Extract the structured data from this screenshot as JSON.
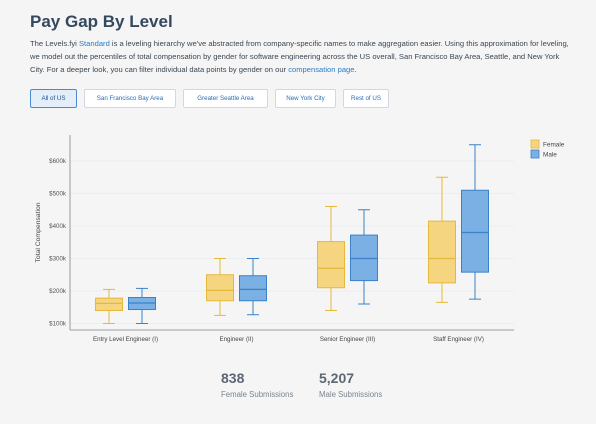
{
  "page": {
    "title": "Pay Gap By Level",
    "intro": {
      "p1": "The Levels.fyi ",
      "link1": "Standard",
      "p2": " is a leveling hierarchy we've abstracted from company-specific names to make aggregation easier. Using this approximation for leveling, we model out the percentiles of total compensation by gender for software engineering across the US overall, San Francisco Bay Area, Seattle, and New York City. For a deeper look, you can filter individual data points by gender on our ",
      "link2": "compensation page",
      "p3": "."
    }
  },
  "filters": {
    "active": 0,
    "items": [
      "All of US",
      "San Francisco Bay Area",
      "Greater Seattle Area",
      "New York City",
      "Rest of US"
    ]
  },
  "colors": {
    "female_fill": "#f5d580",
    "female_stroke": "#e5b93b",
    "male_fill": "#7bb0e4",
    "male_stroke": "#3b82c8",
    "link": "#2a7cc7"
  },
  "chart_data": {
    "type": "box",
    "title": "",
    "xlabel": "",
    "ylabel": "Total Compensation",
    "ylim": [
      80000,
      680000
    ],
    "yticks": [
      100000,
      200000,
      300000,
      400000,
      500000,
      600000
    ],
    "ytick_labels": [
      "$100k",
      "$200k",
      "$300k",
      "$400k",
      "$500k",
      "$600k"
    ],
    "grid": true,
    "legend": "top-right",
    "categories": [
      "Entry Level Engineer (I)",
      "Engineer (II)",
      "Senior Engineer (III)",
      "Staff Engineer (IV)"
    ],
    "series": [
      {
        "name": "Female",
        "boxes": [
          {
            "min": 100000,
            "q1": 140000,
            "median": 162000,
            "q3": 178000,
            "max": 205000
          },
          {
            "min": 125000,
            "q1": 170000,
            "median": 202000,
            "q3": 250000,
            "max": 300000
          },
          {
            "min": 140000,
            "q1": 210000,
            "median": 270000,
            "q3": 352000,
            "max": 460000
          },
          {
            "min": 165000,
            "q1": 225000,
            "median": 300000,
            "q3": 415000,
            "max": 550000
          }
        ]
      },
      {
        "name": "Male",
        "boxes": [
          {
            "min": 100000,
            "q1": 143000,
            "median": 163000,
            "q3": 180000,
            "max": 208000
          },
          {
            "min": 127000,
            "q1": 170000,
            "median": 205000,
            "q3": 247000,
            "max": 300000
          },
          {
            "min": 160000,
            "q1": 232000,
            "median": 300000,
            "q3": 372000,
            "max": 450000
          },
          {
            "min": 175000,
            "q1": 258000,
            "median": 380000,
            "q3": 510000,
            "max": 650000
          }
        ]
      }
    ]
  },
  "stats": [
    {
      "value": "838",
      "label": "Female Submissions"
    },
    {
      "value": "5,207",
      "label": "Male Submissions"
    }
  ]
}
